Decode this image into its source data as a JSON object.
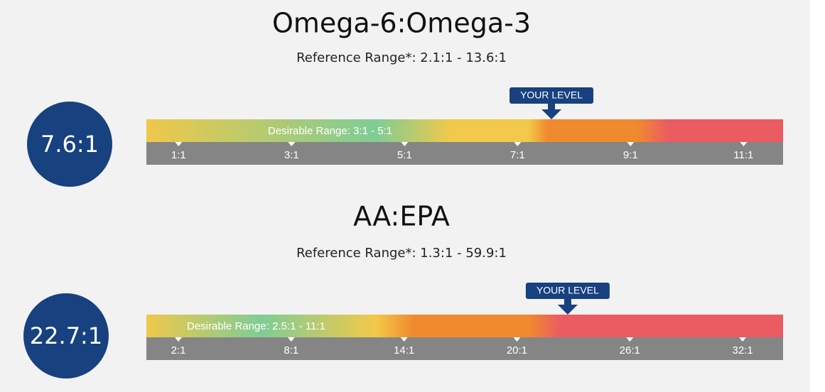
{
  "panels": [
    {
      "title": "Omega-6:Omega-3",
      "reference": "Reference Range*:  2.1:1 - 13.6:1",
      "level": {
        "value": 7.6,
        "label": "7.6:1"
      },
      "marker_label": "YOUR LEVEL",
      "desirable": "Desirable Range: 3:1 - 5:1",
      "xlim": [
        0.43,
        11.7
      ],
      "ticks": [
        {
          "value": 1,
          "label": "1:1"
        },
        {
          "value": 3,
          "label": "3:1"
        },
        {
          "value": 5,
          "label": "5:1"
        },
        {
          "value": 7,
          "label": "7:1"
        },
        {
          "value": 9,
          "label": "9:1"
        },
        {
          "value": 11,
          "label": "11:1"
        }
      ]
    },
    {
      "title": "AA:EPA",
      "reference": "Reference Range*:  1.3:1 - 59.9:1",
      "level": {
        "value": 22.7,
        "label": "22.7:1"
      },
      "marker_label": "YOUR LEVEL",
      "desirable": "Desirable Range: 2.5:1 - 11:1",
      "xlim": [
        0.3,
        34.15
      ],
      "ticks": [
        {
          "value": 2,
          "label": "2:1"
        },
        {
          "value": 8,
          "label": "8:1"
        },
        {
          "value": 14,
          "label": "14:1"
        },
        {
          "value": 20,
          "label": "20:1"
        },
        {
          "value": 26,
          "label": "26:1"
        },
        {
          "value": 32,
          "label": "32:1"
        }
      ]
    }
  ]
}
